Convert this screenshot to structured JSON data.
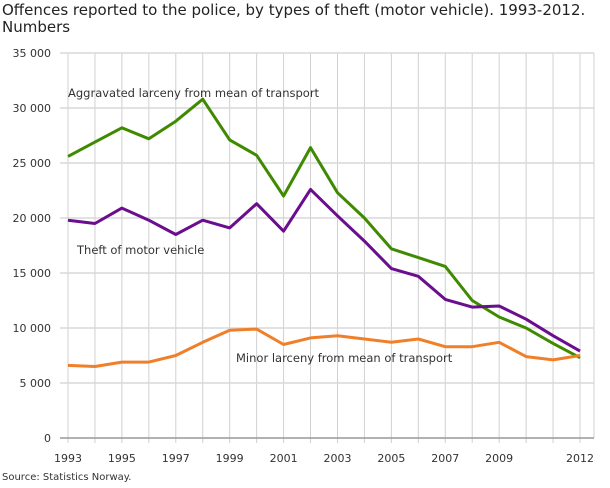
{
  "chart_data": {
    "type": "line",
    "title": "Offences reported to the police, by types of theft (motor vehicle). 1993-2012. Numbers",
    "source": "Source: Statistics Norway.",
    "x": [
      1993,
      1994,
      1995,
      1996,
      1997,
      1998,
      1999,
      2000,
      2001,
      2002,
      2003,
      2004,
      2005,
      2006,
      2007,
      2008,
      2009,
      2010,
      2011,
      2012
    ],
    "x_tick_labels": [
      "1993",
      "1995",
      "1997",
      "1999",
      "2001",
      "2003",
      "2005",
      "2007",
      "2009",
      "2012"
    ],
    "ylim": [
      0,
      35000
    ],
    "y_tick_labels": [
      "0",
      "5 000",
      "10 000",
      "15 000",
      "20 000",
      "25 000",
      "30 000",
      "35 000"
    ],
    "grid": true,
    "series": [
      {
        "name": "Aggravated larceny from mean of transport",
        "color": "#3f8a00",
        "values": [
          25600,
          26900,
          28200,
          27200,
          28800,
          30800,
          27100,
          25700,
          22000,
          26400,
          22300,
          20000,
          17200,
          16400,
          15600,
          12500,
          11000,
          10000,
          8600,
          7300
        ]
      },
      {
        "name": "Theft of motor vehicle",
        "color": "#6a0d8e",
        "values": [
          19800,
          19500,
          20900,
          19800,
          18500,
          19800,
          19100,
          21300,
          18800,
          22600,
          20200,
          17900,
          15400,
          14700,
          12600,
          11900,
          12000,
          10800,
          9300,
          7900
        ]
      },
      {
        "name": "Minor larceny from mean of transport",
        "color": "#f07f2a",
        "values": [
          6600,
          6500,
          6900,
          6900,
          7500,
          8700,
          9800,
          9900,
          8500,
          9100,
          9300,
          9000,
          8700,
          9000,
          8300,
          8300,
          8700,
          7400,
          7100,
          7500
        ]
      }
    ]
  }
}
